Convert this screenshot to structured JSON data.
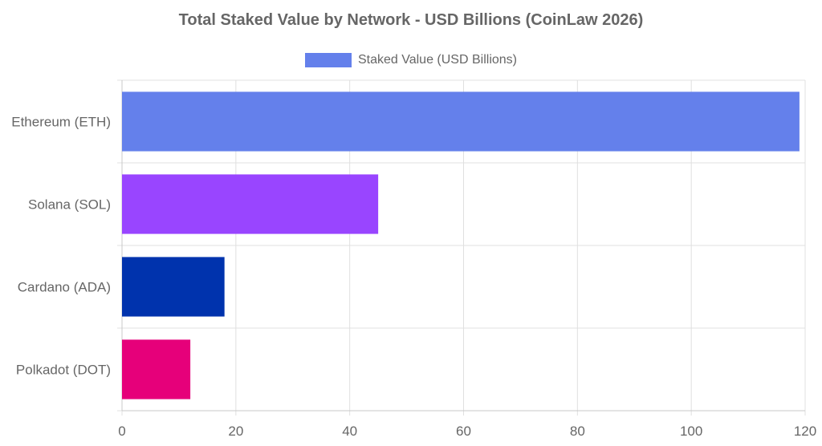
{
  "chart_data": {
    "type": "bar",
    "orientation": "horizontal",
    "title": "Total Staked Value by Network - USD Billions (CoinLaw 2026)",
    "categories": [
      "Ethereum (ETH)",
      "Solana (SOL)",
      "Cardano (ADA)",
      "Polkadot (DOT)"
    ],
    "series": [
      {
        "name": "Staked Value (USD Billions)",
        "values": [
          119,
          45,
          18,
          12
        ],
        "colors": [
          "#6480eb",
          "#9945ff",
          "#0033ad",
          "#e6007a"
        ]
      }
    ],
    "xlim": [
      0,
      120
    ],
    "xticks": [
      0,
      20,
      40,
      60,
      80,
      100,
      120
    ],
    "grid": true,
    "legend_position": "top"
  }
}
